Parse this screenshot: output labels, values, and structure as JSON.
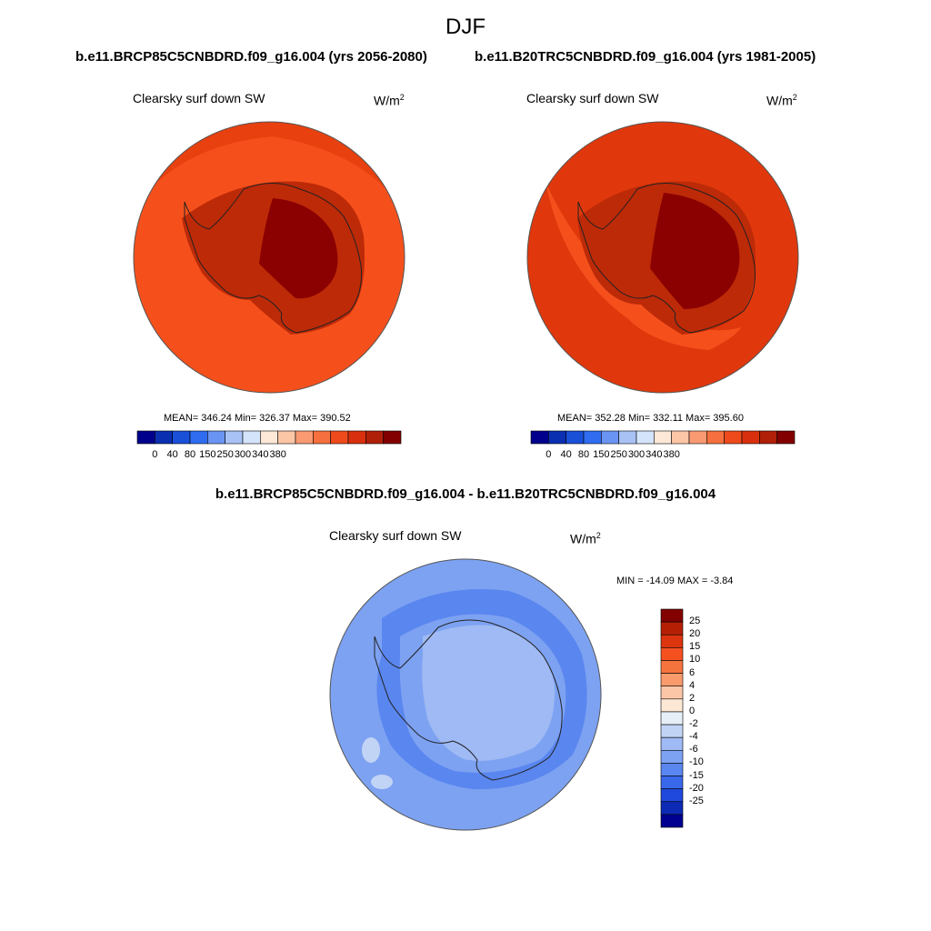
{
  "title": "DJF",
  "panels": [
    {
      "case_title": "b.e11.BRCP85C5CNBDRD.f09_g16.004 (yrs 2056-2080)",
      "variable_label": "Clearsky surf down SW",
      "units": "W/m",
      "units_exponent": "2",
      "stats": "MEAN= 346.24  Min= 326.37  Max= 390.52"
    },
    {
      "case_title": "b.e11.B20TRC5CNBDRD.f09_g16.004 (yrs 1981-2005)",
      "variable_label": "Clearsky surf down SW",
      "units": "W/m",
      "units_exponent": "2",
      "stats": "MEAN= 352.28  Min= 332.11  Max= 395.60"
    }
  ],
  "difference_panel": {
    "title": "b.e11.BRCP85C5CNBDRD.f09_g16.004 - b.e11.B20TRC5CNBDRD.f09_g16.004",
    "variable_label": "Clearsky surf down SW",
    "units": "W/m",
    "units_exponent": "2",
    "stats": "MIN = -14.09 MAX =  -3.84"
  },
  "abs_colorbar": {
    "colors": [
      "#00008c",
      "#0a2fb0",
      "#1a4fd8",
      "#2f6cf0",
      "#6a94f4",
      "#a8c2f5",
      "#d4e4fa",
      "#fde8d8",
      "#fbc6a6",
      "#f99a72",
      "#f5703e",
      "#ee4a1c",
      "#d8300e",
      "#b02008",
      "#820000"
    ],
    "tick_labels": [
      "0",
      "40",
      "80",
      "150",
      "250",
      "300",
      "340",
      "380"
    ]
  },
  "diff_colorbar": {
    "colors": [
      "#820000",
      "#b52005",
      "#dc3510",
      "#f55020",
      "#f5743e",
      "#f89b6c",
      "#fbc6a8",
      "#fde7d5",
      "#e6eef8",
      "#c2d4f5",
      "#9fbaf4",
      "#7da2f2",
      "#5a86ef",
      "#3a68ea",
      "#1f48dc",
      "#0c2ab4",
      "#000090"
    ],
    "tick_labels": [
      "25",
      "20",
      "15",
      "10",
      "6",
      "4",
      "2",
      "0",
      "-2",
      "-4",
      "-6",
      "-10",
      "-15",
      "-20",
      "-25"
    ]
  }
}
